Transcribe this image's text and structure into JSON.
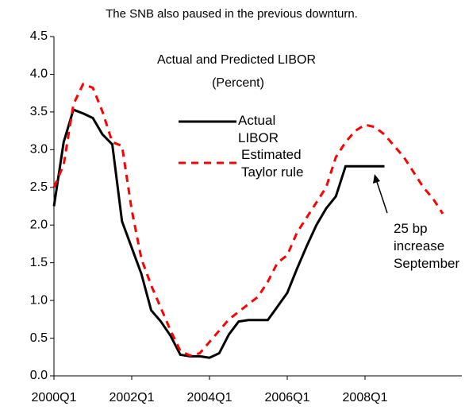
{
  "chart_data": {
    "type": "line",
    "title": "The SNB also paused in the previous downturn.",
    "subtitle": "Actual and Predicted LIBOR",
    "units": "(Percent)",
    "annotation": "25 bp increase September",
    "categories": [
      "2000Q1",
      null,
      null,
      null,
      null,
      null,
      null,
      null,
      "2002Q1",
      null,
      null,
      null,
      null,
      null,
      null,
      null,
      "2004Q1",
      null,
      null,
      null,
      null,
      null,
      null,
      null,
      "2006Q1",
      null,
      null,
      null,
      null,
      null,
      null,
      null,
      "2008Q1",
      null,
      null,
      null,
      null,
      null,
      null,
      null,
      null,
      null,
      null
    ],
    "series": [
      {
        "name": "Actual LIBOR",
        "color": "#000000",
        "dash": false,
        "values": [
          2.25,
          3.1,
          3.53,
          3.48,
          3.42,
          3.2,
          3.07,
          2.05,
          1.7,
          1.35,
          0.87,
          0.72,
          0.53,
          0.28,
          0.26,
          0.26,
          0.24,
          0.3,
          0.55,
          0.72,
          0.74,
          0.74,
          0.74,
          0.92,
          1.1,
          1.42,
          1.72,
          2.0,
          2.22,
          2.38,
          2.78,
          2.78,
          2.78,
          2.78,
          2.78,
          null,
          null,
          null,
          null,
          null,
          null,
          null,
          null
        ]
      },
      {
        "name": "Estimated Taylor rule",
        "color": "#ff0000",
        "dash": true,
        "values": [
          2.5,
          2.8,
          3.6,
          3.87,
          3.82,
          3.5,
          3.1,
          3.05,
          2.2,
          1.55,
          1.2,
          0.9,
          0.6,
          0.33,
          0.27,
          0.3,
          0.45,
          0.6,
          0.75,
          0.85,
          0.95,
          1.05,
          1.25,
          1.5,
          1.6,
          1.9,
          2.1,
          2.3,
          2.5,
          2.9,
          3.1,
          3.25,
          3.33,
          3.3,
          3.2,
          3.05,
          2.9,
          2.7,
          2.5,
          2.35,
          2.15,
          null,
          null
        ]
      }
    ],
    "ylim": [
      0,
      4.5
    ],
    "yticks": [
      {
        "value": 0,
        "label": "0.0"
      },
      0.5,
      {
        "value": 1,
        "label": "1.0"
      },
      1.5,
      {
        "value": 2,
        "label": "2.0"
      },
      2.5,
      {
        "value": 3,
        "label": "3.0"
      },
      3.5,
      {
        "value": 4,
        "label": "4.0"
      },
      4.5
    ],
    "grid": false
  }
}
